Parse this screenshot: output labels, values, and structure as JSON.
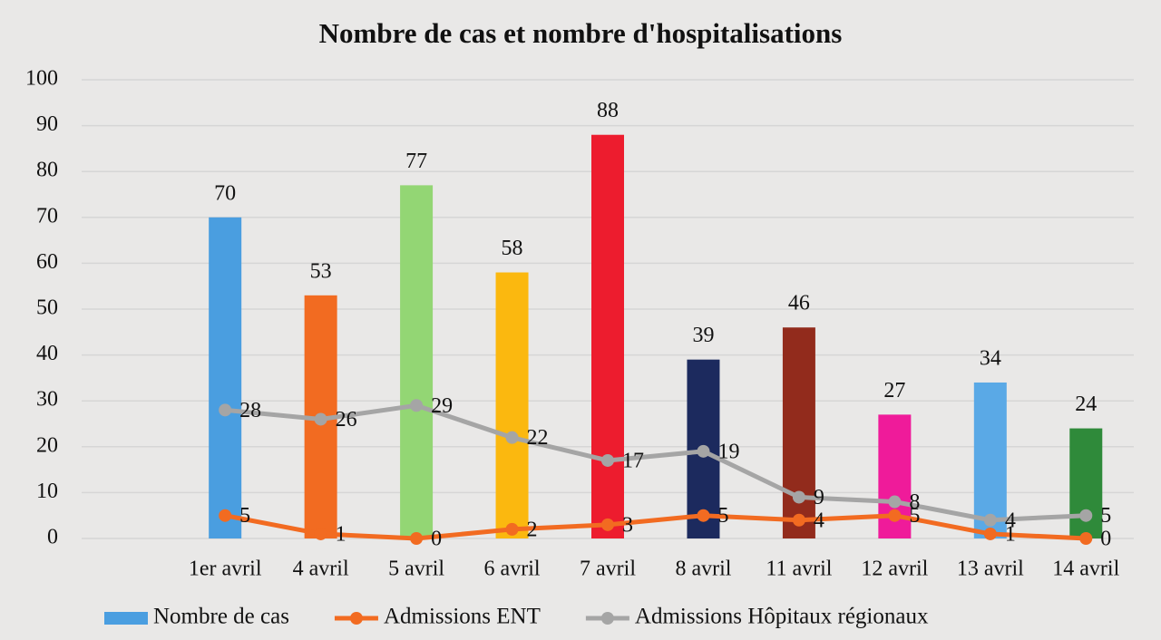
{
  "chart_data": {
    "type": "bar",
    "title": "Nombre de cas et nombre d'hospitalisations",
    "categories": [
      null,
      "1er avril",
      "4 avril",
      "5 avril",
      "6 avril",
      "7 avril",
      "8 avril",
      "11 avril",
      "12 avril",
      "13 avril",
      "14 avril"
    ],
    "series": [
      {
        "name": "Nombre de cas",
        "type": "bar",
        "color": "#4a9ee0",
        "colors": [
          null,
          "#4a9ee0",
          "#f26b21",
          "#93d674",
          "#fbb80f",
          "#ed1c2e",
          "#1c2a5e",
          "#922b1c",
          "#ef1b9a",
          "#5aa9e6",
          "#2f8a3a"
        ],
        "values": [
          null,
          70,
          53,
          77,
          58,
          88,
          39,
          46,
          27,
          34,
          24
        ]
      },
      {
        "name": "Admissions ENT",
        "type": "line",
        "color": "#f26b21",
        "values": [
          null,
          5,
          1,
          0,
          2,
          3,
          5,
          4,
          5,
          1,
          0
        ]
      },
      {
        "name": "Admissions Hôpitaux régionaux",
        "type": "line",
        "color": "#a5a5a5",
        "values": [
          null,
          28,
          26,
          29,
          22,
          17,
          19,
          9,
          8,
          4,
          5
        ]
      }
    ],
    "ylim": [
      0,
      100
    ],
    "yticks": [
      0,
      10,
      20,
      30,
      40,
      50,
      60,
      70,
      80,
      90,
      100
    ],
    "grid": true,
    "legend": "bottom"
  }
}
